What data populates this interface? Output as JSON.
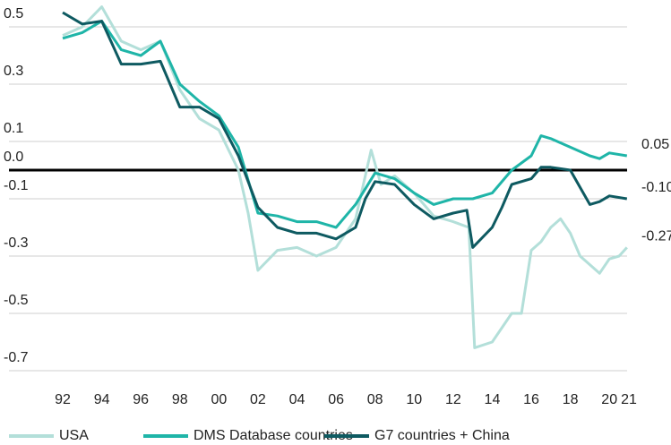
{
  "chart_data": {
    "type": "line",
    "xlim": [
      1992,
      2021
    ],
    "xticks": [
      {
        "value": 1992,
        "label": "92"
      },
      {
        "value": 1994,
        "label": "94"
      },
      {
        "value": 1996,
        "label": "96"
      },
      {
        "value": 1998,
        "label": "98"
      },
      {
        "value": 2000,
        "label": "00"
      },
      {
        "value": 2002,
        "label": "02"
      },
      {
        "value": 2004,
        "label": "04"
      },
      {
        "value": 2006,
        "label": "06"
      },
      {
        "value": 2008,
        "label": "08"
      },
      {
        "value": 2010,
        "label": "10"
      },
      {
        "value": 2012,
        "label": "12"
      },
      {
        "value": 2014,
        "label": "14"
      },
      {
        "value": 2016,
        "label": "16"
      },
      {
        "value": 2018,
        "label": "18"
      },
      {
        "value": 2020,
        "label": "20"
      },
      {
        "value": 2021,
        "label": "21"
      }
    ],
    "ylim": [
      -0.7,
      0.55
    ],
    "yticks": [
      0.5,
      0.3,
      0.1,
      {
        "value": 0,
        "label": "0.0"
      },
      -0.1,
      -0.3,
      -0.5,
      -0.7
    ],
    "grid": true,
    "legend": "bottom",
    "series": [
      {
        "name": "USA",
        "color": "#b3dfd9",
        "end_label": "-0.27",
        "x": [
          1992,
          1993,
          1994,
          1995,
          1996,
          1997,
          1998,
          1999,
          2000,
          2001,
          2001.5,
          2002,
          2003,
          2004,
          2005,
          2006,
          2007,
          2007.8,
          2008.3,
          2009,
          2010,
          2011,
          2012,
          2012.8,
          2013.1,
          2014,
          2014.5,
          2015,
          2015.5,
          2016,
          2016.5,
          2017,
          2017.5,
          2018,
          2018.5,
          2019,
          2019.5,
          2020,
          2020.5,
          2020.9
        ],
        "values": [
          0.47,
          0.5,
          0.57,
          0.45,
          0.42,
          0.45,
          0.28,
          0.18,
          0.14,
          0.0,
          -0.15,
          -0.35,
          -0.28,
          -0.27,
          -0.3,
          -0.27,
          -0.17,
          0.07,
          -0.05,
          -0.02,
          -0.08,
          -0.16,
          -0.18,
          -0.2,
          -0.62,
          -0.6,
          -0.55,
          -0.5,
          -0.5,
          -0.28,
          -0.25,
          -0.2,
          -0.17,
          -0.22,
          -0.3,
          -0.33,
          -0.36,
          -0.31,
          -0.3,
          -0.27
        ]
      },
      {
        "name": "DMS Database countries",
        "color": "#1fb5a8",
        "end_label": "0.05",
        "x": [
          1992,
          1993,
          1994,
          1995,
          1996,
          1997,
          1998,
          1999,
          2000,
          2001,
          2002,
          2003,
          2004,
          2005,
          2006,
          2007,
          2008,
          2009,
          2010,
          2011,
          2012,
          2013,
          2014,
          2015,
          2016,
          2016.5,
          2017,
          2018,
          2019,
          2019.5,
          2020,
          2020.9
        ],
        "values": [
          0.46,
          0.48,
          0.52,
          0.42,
          0.4,
          0.45,
          0.3,
          0.24,
          0.19,
          0.08,
          -0.15,
          -0.16,
          -0.18,
          -0.18,
          -0.2,
          -0.12,
          -0.01,
          -0.03,
          -0.08,
          -0.12,
          -0.1,
          -0.1,
          -0.08,
          0.0,
          0.05,
          0.12,
          0.11,
          0.08,
          0.05,
          0.04,
          0.06,
          0.05
        ]
      },
      {
        "name": "G7 countries + China",
        "color": "#0e5a61",
        "end_label": "-0.10",
        "x": [
          1992,
          1993,
          1994,
          1995,
          1996,
          1997,
          1998,
          1999,
          2000,
          2001,
          2002,
          2003,
          2004,
          2005,
          2006,
          2007,
          2007.5,
          2008,
          2009,
          2010,
          2011,
          2012,
          2012.7,
          2013,
          2014,
          2014.5,
          2015,
          2016,
          2016.5,
          2017,
          2018,
          2018.5,
          2019,
          2019.5,
          2020,
          2020.9
        ],
        "values": [
          0.55,
          0.51,
          0.52,
          0.37,
          0.37,
          0.38,
          0.22,
          0.22,
          0.18,
          0.05,
          -0.13,
          -0.2,
          -0.22,
          -0.22,
          -0.24,
          -0.2,
          -0.1,
          -0.04,
          -0.05,
          -0.12,
          -0.17,
          -0.15,
          -0.14,
          -0.27,
          -0.2,
          -0.13,
          -0.05,
          -0.03,
          0.01,
          0.01,
          0.0,
          -0.06,
          -0.12,
          -0.11,
          -0.09,
          -0.1
        ]
      }
    ]
  }
}
